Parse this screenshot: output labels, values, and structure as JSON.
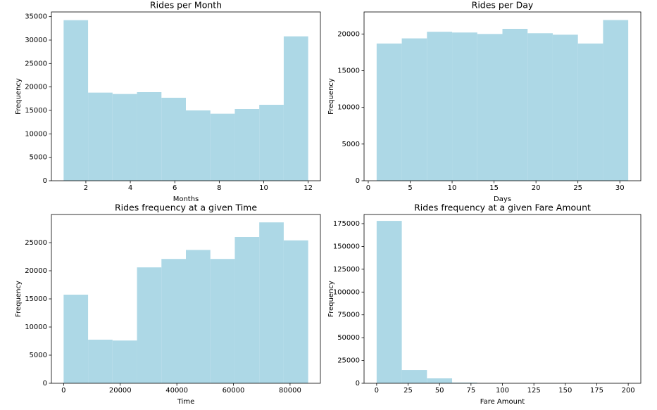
{
  "chart_data": [
    {
      "type": "histogram",
      "title": "Rides per Month",
      "xlabel": "Months",
      "ylabel": "Frequency",
      "color": "#add8e6",
      "bins": [
        1,
        2.1,
        3.2,
        4.3,
        5.4,
        6.5,
        7.6,
        8.7,
        9.8,
        10.9,
        12
      ],
      "values": [
        34250,
        18800,
        18500,
        18900,
        17700,
        15000,
        14300,
        15300,
        16200,
        30800
      ],
      "xlim": [
        0.45,
        12.55
      ],
      "ylim": [
        0,
        36000
      ],
      "xticks": [
        2,
        4,
        6,
        8,
        10,
        12
      ],
      "yticks": [
        0,
        5000,
        10000,
        15000,
        20000,
        25000,
        30000,
        35000
      ]
    },
    {
      "type": "histogram",
      "title": "Rides per Day",
      "xlabel": "Days",
      "ylabel": "Frequency",
      "color": "#add8e6",
      "bins": [
        1,
        4,
        7,
        10,
        13,
        16,
        19,
        22,
        25,
        28,
        31
      ],
      "values": [
        18700,
        19400,
        20300,
        20200,
        20000,
        20700,
        20100,
        19900,
        18700,
        21900
      ],
      "xlim": [
        -0.5,
        32.5
      ],
      "ylim": [
        0,
        23000
      ],
      "xticks": [
        0,
        5,
        10,
        15,
        20,
        25,
        30
      ],
      "yticks": [
        0,
        5000,
        10000,
        15000,
        20000
      ]
    },
    {
      "type": "histogram",
      "title": "Rides frequency at a given Time",
      "xlabel": "Time",
      "ylabel": "Frequency",
      "color": "#add8e6",
      "bins": [
        0,
        8640,
        17280,
        25920,
        34560,
        43200,
        51840,
        60480,
        69120,
        77760,
        86400
      ],
      "values": [
        15750,
        7750,
        7600,
        20600,
        22100,
        23700,
        22100,
        26000,
        28600,
        25400
      ],
      "xlim": [
        -4320,
        90720
      ],
      "ylim": [
        0,
        30000
      ],
      "xticks": [
        0,
        20000,
        40000,
        60000,
        80000
      ],
      "yticks": [
        0,
        5000,
        10000,
        15000,
        20000,
        25000
      ]
    },
    {
      "type": "histogram",
      "title": "Rides frequency at a given Fare Amount",
      "xlabel": "Fare Amount",
      "ylabel": "Frequency",
      "color": "#add8e6",
      "bins": [
        0,
        20,
        40,
        60,
        80,
        100,
        120,
        140,
        160,
        180,
        200
      ],
      "values": [
        178000,
        14600,
        5400,
        800,
        200,
        80,
        30,
        10,
        10,
        10
      ],
      "xlim": [
        -10,
        210
      ],
      "ylim": [
        0,
        185000
      ],
      "xticks": [
        0,
        25,
        50,
        75,
        100,
        125,
        150,
        175,
        200
      ],
      "yticks": [
        0,
        25000,
        50000,
        75000,
        100000,
        125000,
        150000,
        175000
      ]
    }
  ]
}
